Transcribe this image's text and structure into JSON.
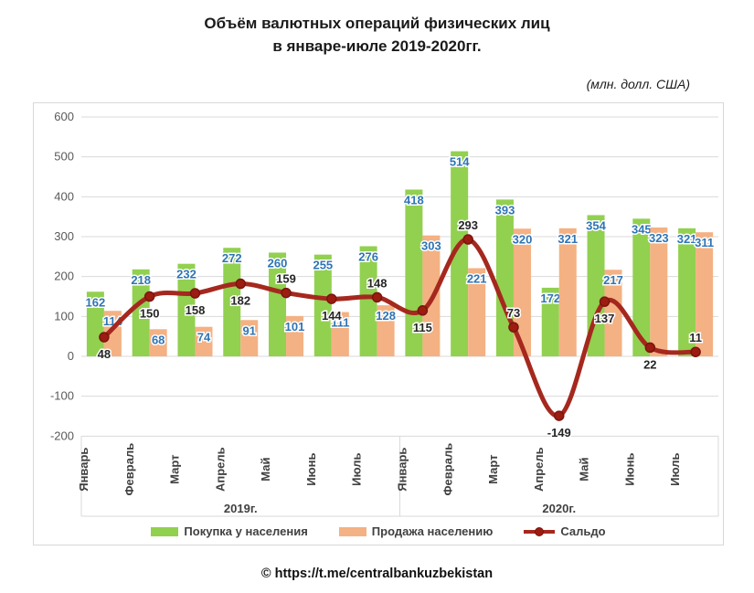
{
  "header": {
    "title_line1": "Объём валютных операций физических лиц",
    "title_line2": "в январе-июле 2019-2020гг.",
    "units_note": "(млн. долл. США)"
  },
  "footer": {
    "source": "© https://t.me/centralbankuzbekistan"
  },
  "chart_data": {
    "type": "bar",
    "subtype": "grouped bars with smoothed line overlay",
    "title": "Объём валютных операций физических лиц в январе-июле 2019-2020гг.",
    "units": "(млн. долл. США)",
    "grid": true,
    "legend_position": "bottom",
    "y_axis": {
      "min": -200,
      "max": 600,
      "step": 100
    },
    "month_names": [
      "Январь",
      "Февраль",
      "Март",
      "Апрель",
      "Май",
      "Июнь",
      "Июль"
    ],
    "groups": [
      {
        "label": "2019г."
      },
      {
        "label": "2020г."
      }
    ],
    "categories": [
      "Январь",
      "Февраль",
      "Март",
      "Апрель",
      "Май",
      "Июнь",
      "Июль",
      "Январь",
      "Февраль",
      "Март",
      "Апрель",
      "Май",
      "Июнь",
      "Июль"
    ],
    "series": [
      {
        "name": "Покупка у населения",
        "type": "bar",
        "color": "#92d050",
        "label_color": "#2e74b5",
        "values": [
          162,
          218,
          232,
          272,
          260,
          255,
          276,
          418,
          514,
          393,
          172,
          354,
          345,
          321
        ]
      },
      {
        "name": "Продажа населению",
        "type": "bar",
        "color": "#f4b183",
        "label_color": "#2e74b5",
        "values": [
          114,
          68,
          74,
          91,
          101,
          111,
          128,
          303,
          221,
          320,
          321,
          217,
          323,
          311
        ]
      },
      {
        "name": "Сальдо",
        "type": "line",
        "color": "#a5281e",
        "marker_fill": "#9c1c12",
        "marker_stroke": "#7a150e",
        "label_color": "#262626",
        "values": [
          48,
          150,
          158,
          182,
          159,
          144,
          148,
          115,
          293,
          73,
          -149,
          137,
          22,
          11
        ],
        "label_positions": [
          "below",
          "below",
          "below",
          "below",
          "above",
          "below",
          "above",
          "below",
          "above",
          "above",
          "below",
          "below",
          "below",
          "above"
        ]
      }
    ],
    "axis_text_color": "#595959",
    "category_text_color": "#404040",
    "gridline_color": "#d9d9d9"
  }
}
